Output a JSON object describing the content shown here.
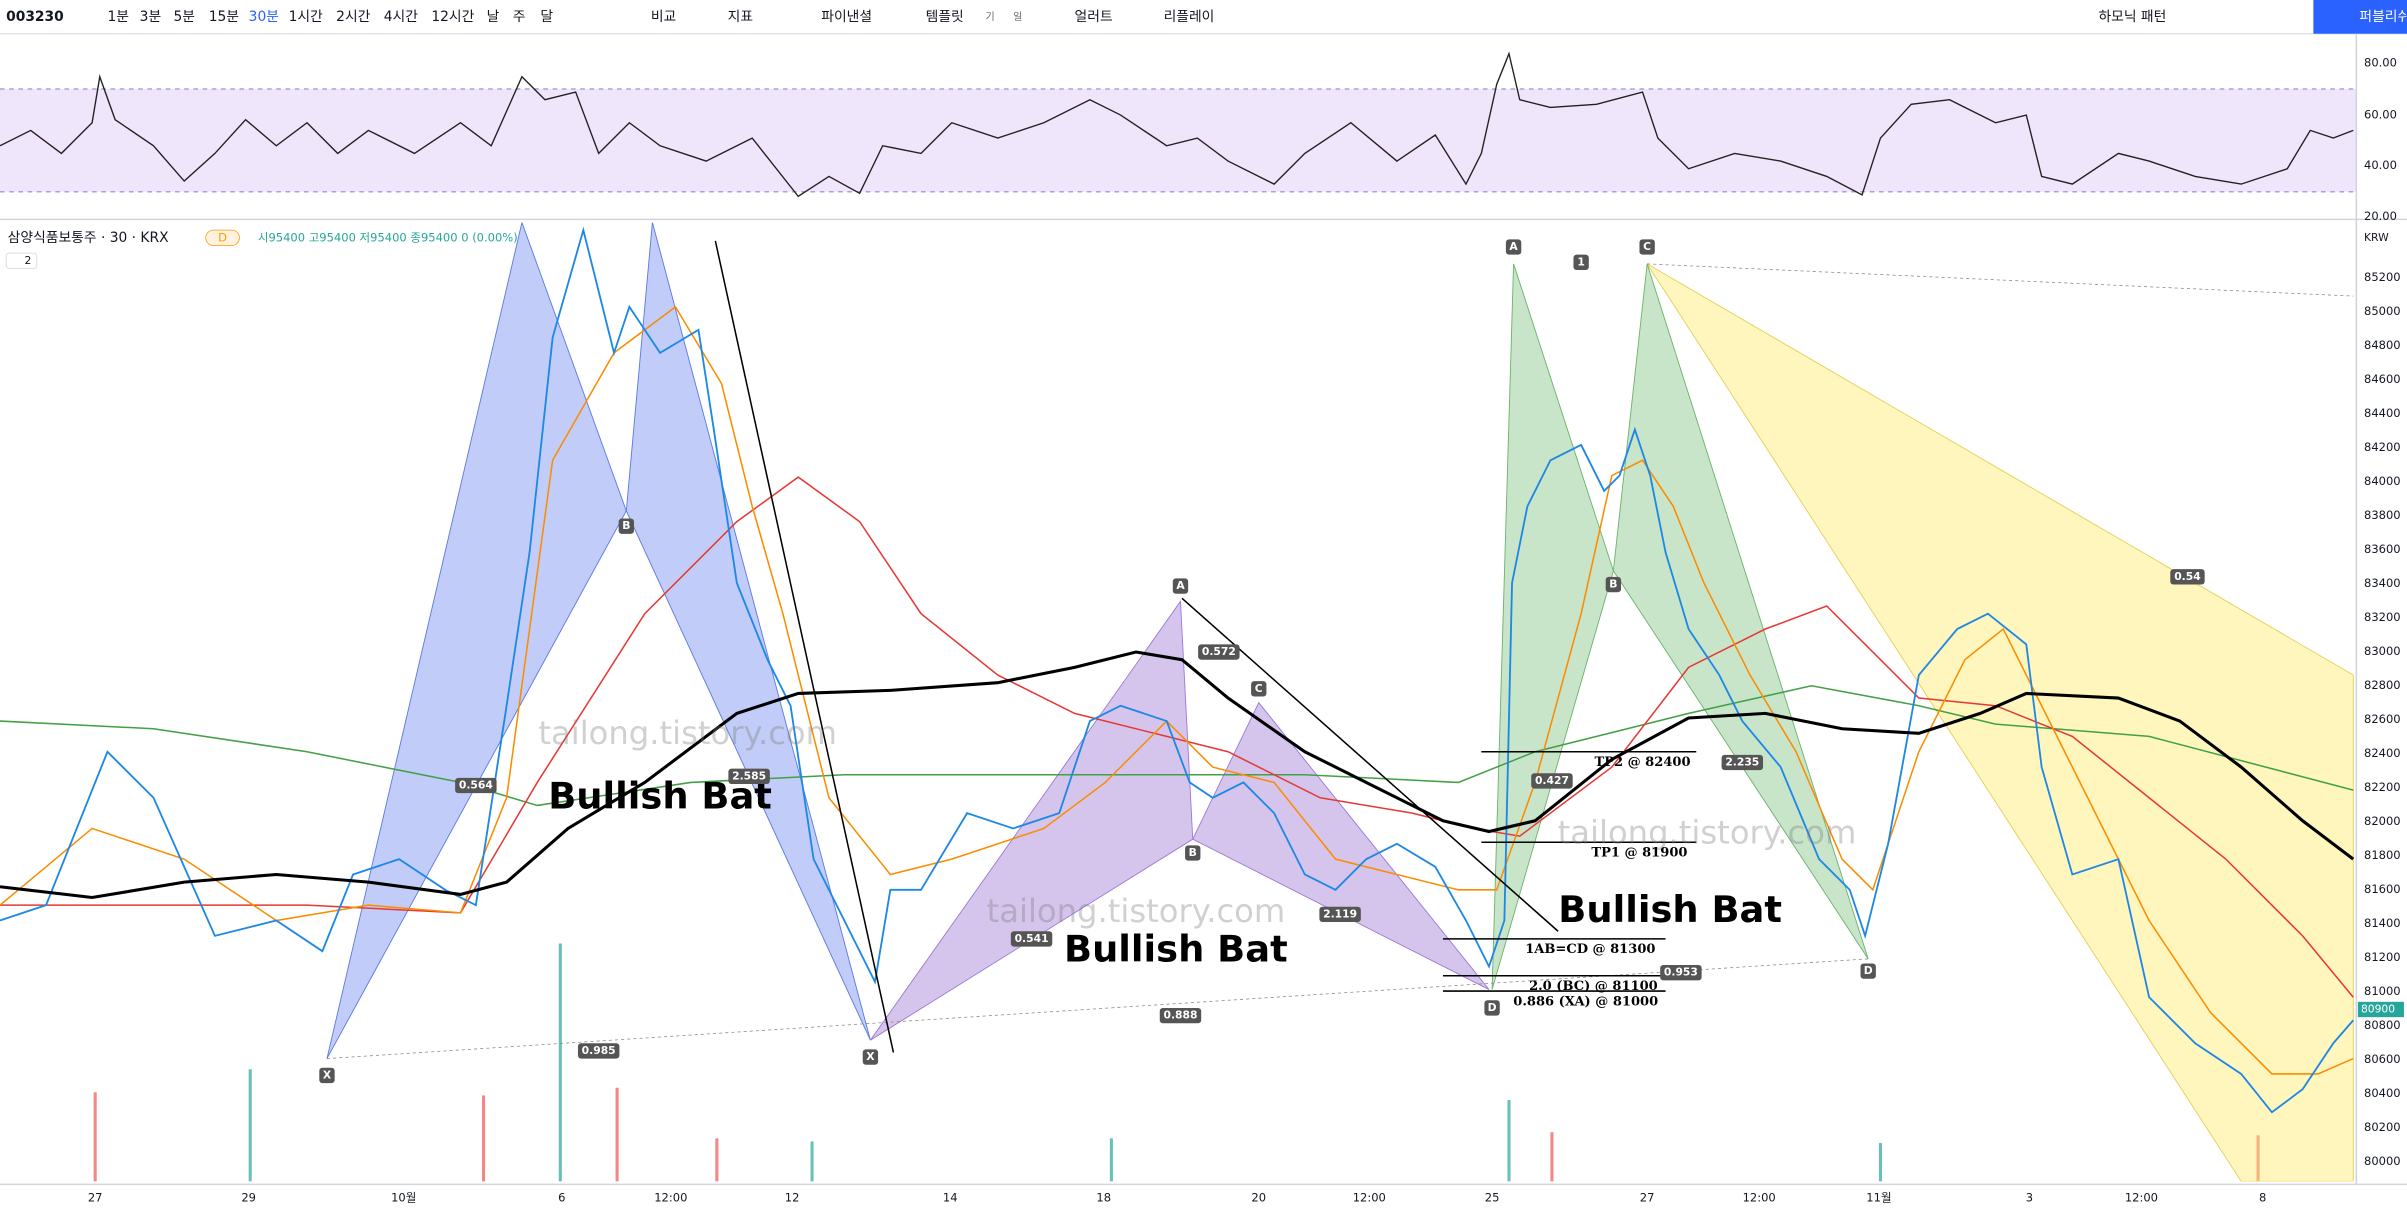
{
  "toolbar": {
    "symbol": "003230",
    "intervals": [
      "1분",
      "3분",
      "5분",
      "15분",
      "30분",
      "1시간",
      "2시간",
      "4시간",
      "12시간",
      "날",
      "주",
      "달"
    ],
    "actions": [
      "비교",
      "지표",
      "파이낸셜",
      "템플릿",
      "기",
      "일",
      "얼러트",
      "리플레이"
    ],
    "harmonic": "하모닉 패턴",
    "publish": "퍼블리쉬"
  },
  "rsi_axis": [
    "80.00",
    "60.00",
    "40.00",
    "20.00"
  ],
  "legend": {
    "name": "삼양식품보통주 · 30 · KRX",
    "badge": "D",
    "ohlc": "시95400 고95400 저95400 종95400 0 (0.00%)",
    "collapse": "2"
  },
  "price_axis": {
    "currency": "KRW",
    "ticks": [
      "85200",
      "85000",
      "84800",
      "84600",
      "84400",
      "84200",
      "84000",
      "83800",
      "83600",
      "83400",
      "83200",
      "83000",
      "82800",
      "82600",
      "82400",
      "82200",
      "82000",
      "81800",
      "81600",
      "81400",
      "81200",
      "81000",
      "80800",
      "80600",
      "80400",
      "80200",
      "80000"
    ],
    "last": "80900"
  },
  "time_axis": [
    "27",
    "29",
    "10월",
    "6",
    "12:00",
    "12",
    "14",
    "18",
    "20",
    "12:00",
    "25",
    "27",
    "12:00",
    "11월",
    "3",
    "12:00",
    "8"
  ],
  "annotations": {
    "titles": [
      "Bullish Bat",
      "Bullish Bat",
      "Bullish Bat"
    ],
    "watermarks": [
      "tailong.tistory.com",
      "tailong.tistory.com",
      "tailong.tistory.com"
    ],
    "points": [
      "X",
      "B",
      "X",
      "A",
      "B",
      "C",
      "A",
      "1",
      "C",
      "B",
      "D",
      "D"
    ],
    "ratios": [
      "0.564",
      "2.585",
      "0.985",
      "0.541",
      "0.572",
      "0.888",
      "2.119",
      "0.427",
      "0.953",
      "2.235",
      "0.54"
    ],
    "levels": [
      "TP2 @ 82400",
      "TP1 @ 81900",
      "1AB=CD @ 81300",
      "2.0 (BC) @ 81100",
      "0.886 (XA) @ 81000"
    ]
  }
}
